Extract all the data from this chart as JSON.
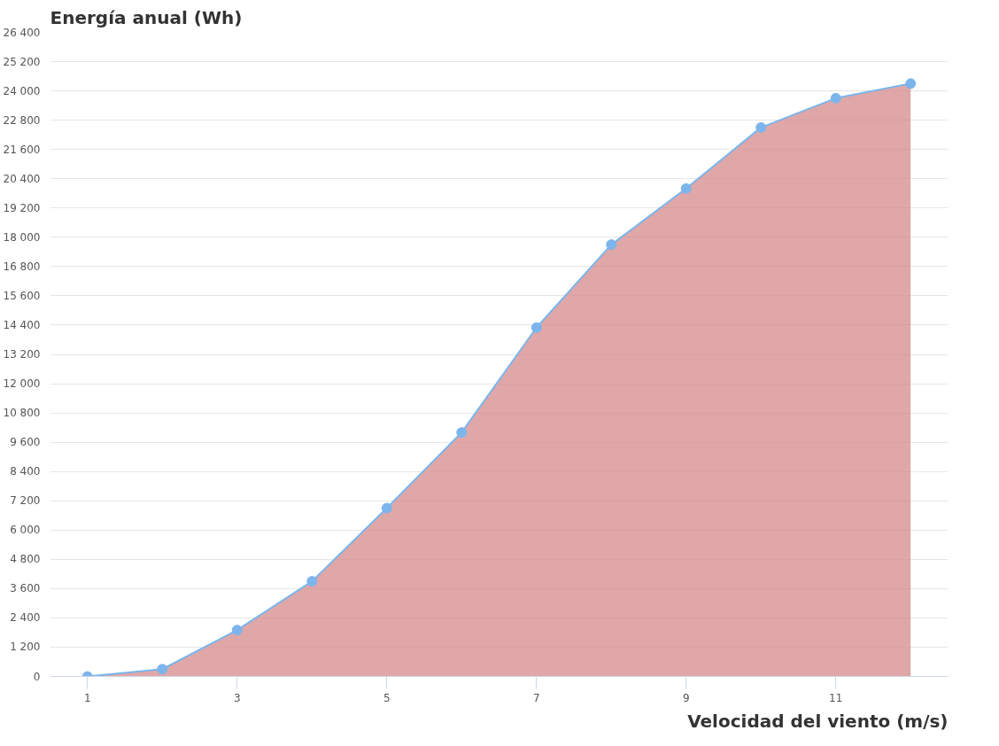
{
  "chart_data": {
    "type": "area",
    "ylabel": "Energía anual (Wh)",
    "xlabel": "Velocidad del viento (m/s)",
    "x": [
      1,
      2,
      3,
      4,
      5,
      6,
      7,
      8,
      9,
      10,
      11,
      12
    ],
    "series": [
      {
        "color": "#7cb5ec",
        "values": [
          0,
          300,
          1900,
          3900,
          6900,
          10000,
          14300,
          17700,
          20000,
          22500,
          23700,
          24300
        ]
      }
    ],
    "xlim": [
      0.5,
      12.5
    ],
    "xticks": [
      1,
      3,
      5,
      7,
      9,
      11
    ],
    "ylim": [
      0,
      26400
    ],
    "yticks": [
      0,
      {
        "value": 1200,
        "label": "1 200"
      },
      {
        "value": 2400,
        "label": "2 400"
      },
      {
        "value": 3600,
        "label": "3 600"
      },
      {
        "value": 4800,
        "label": "4 800"
      },
      {
        "value": 6000,
        "label": "6 000"
      },
      {
        "value": 7200,
        "label": "7 200"
      },
      {
        "value": 8400,
        "label": "8 400"
      },
      {
        "value": 9600,
        "label": "9 600"
      },
      {
        "value": 10800,
        "label": "10 800"
      },
      {
        "value": 12000,
        "label": "12 000"
      },
      {
        "value": 13200,
        "label": "13 200"
      },
      {
        "value": 14400,
        "label": "14 400"
      },
      {
        "value": 15600,
        "label": "15 600"
      },
      {
        "value": 16800,
        "label": "16 800"
      },
      {
        "value": 18000,
        "label": "18 000"
      },
      {
        "value": 19200,
        "label": "19 200"
      },
      {
        "value": 20400,
        "label": "20 400"
      },
      {
        "value": 21600,
        "label": "21 600"
      },
      {
        "value": 22800,
        "label": "22 800"
      },
      {
        "value": 24000,
        "label": "24 000"
      },
      {
        "value": 25200,
        "label": "25 200"
      },
      {
        "value": 26400,
        "label": "26 400"
      }
    ],
    "grid": "y",
    "marker": "circle"
  }
}
